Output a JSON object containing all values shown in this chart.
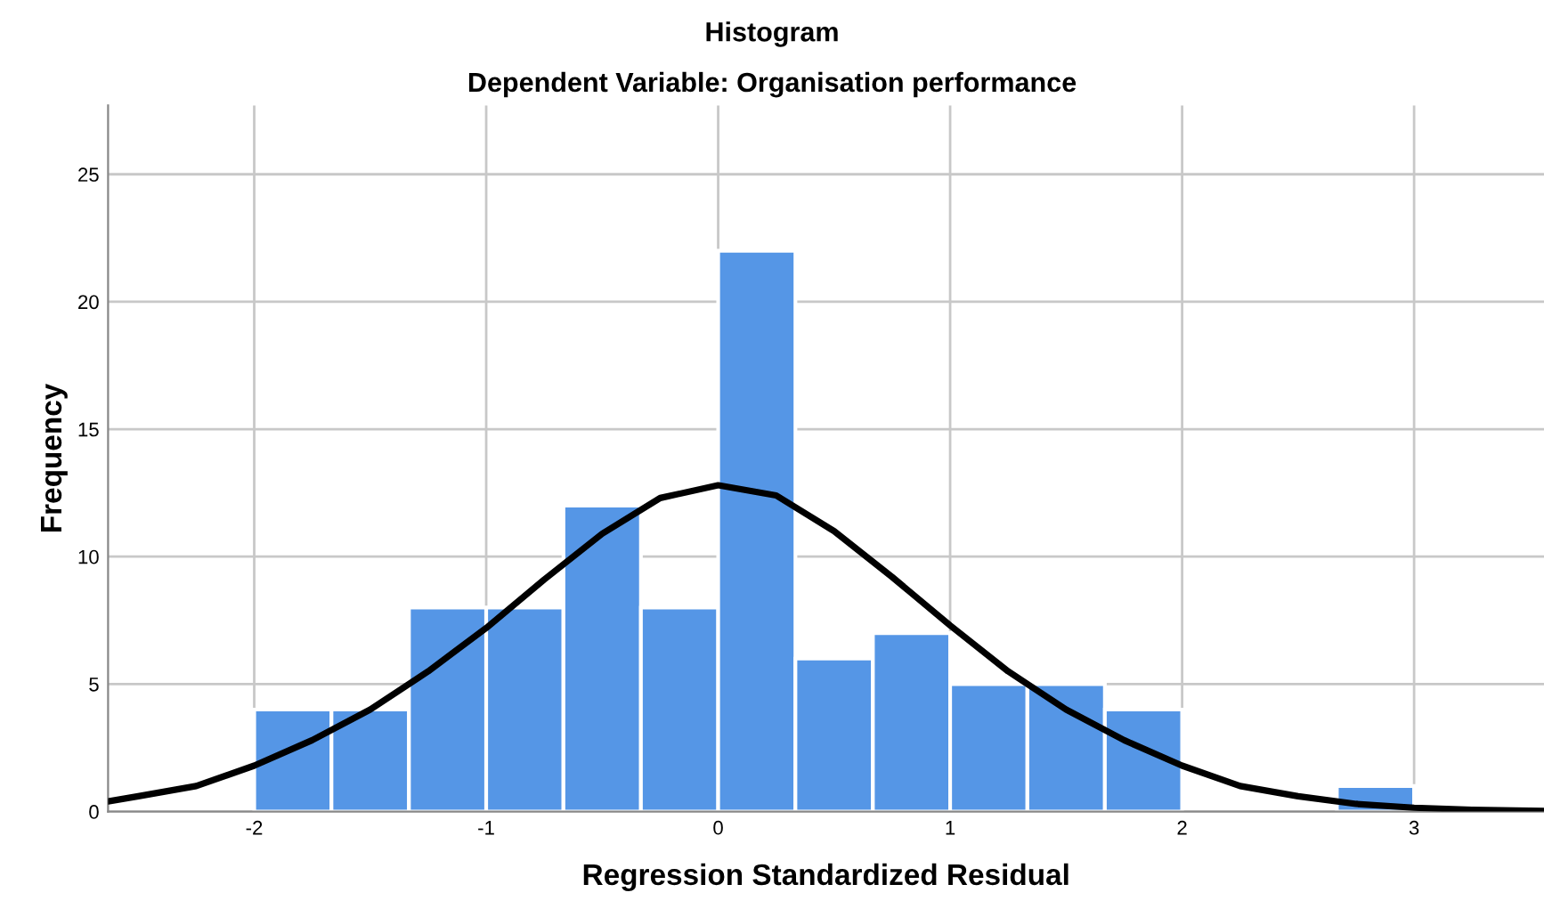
{
  "chart_data": {
    "type": "histogram",
    "title": "Histogram",
    "subtitle": "Dependent Variable: Organisation performance",
    "xlabel": "Regression Standardized Residual",
    "ylabel": "Frequency",
    "bins": [
      -2,
      -1.667,
      -1.333,
      -1,
      -0.667,
      -0.333,
      0,
      0.333,
      0.667,
      1,
      1.333,
      1.667,
      2,
      2.333,
      2.667,
      3
    ],
    "values": [
      4,
      4,
      8,
      8,
      12,
      8,
      22,
      6,
      7,
      5,
      5,
      4,
      0,
      0,
      1
    ],
    "color": "#5596e6",
    "series": [
      {
        "type": "line",
        "color": "#000000",
        "x": [
          -2.63,
          -2.5,
          -2.25,
          -2,
          -1.75,
          -1.5,
          -1.25,
          -1,
          -0.75,
          -0.5,
          -0.25,
          0,
          0.25,
          0.5,
          0.75,
          1,
          1.25,
          1.5,
          1.75,
          2,
          2.25,
          2.5,
          2.75,
          3,
          3.25,
          3.56
        ],
        "values": [
          0.4,
          0.6,
          1.0,
          1.8,
          2.8,
          4.0,
          5.5,
          7.2,
          9.1,
          10.9,
          12.3,
          12.8,
          12.4,
          11.0,
          9.2,
          7.3,
          5.5,
          4.0,
          2.8,
          1.8,
          1.0,
          0.6,
          0.3,
          0.15,
          0.07,
          0.02
        ]
      }
    ],
    "xlim": [
      -2.63,
      3.56
    ],
    "ylim": [
      0,
      27.7
    ],
    "xticks": [
      -2,
      -1,
      0,
      1,
      2,
      3
    ],
    "yticks": [
      0,
      5,
      10,
      15,
      20,
      25
    ],
    "grid": true,
    "legend": false
  }
}
